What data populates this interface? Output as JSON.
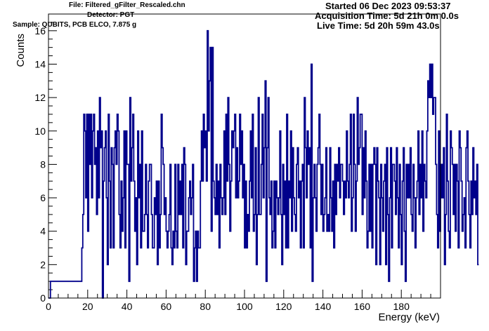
{
  "header": {
    "file": "File: Filtered_gFilter_Rescaled.chn",
    "detector": "Detector: PGT",
    "sample": "Sample: QUBITS, PCB ELCO, 7.875 g",
    "started": "Started 06 Dec 2023 09:53:37",
    "acquisition": "Acquisition Time: 5d 21h 0m 0.0s",
    "live": "Live Time: 5d 20h 59m 43.0s"
  },
  "colors": {
    "line": "#00008b",
    "frame": "#000000",
    "background": "#ffffff"
  },
  "chart_data": {
    "type": "line",
    "style": "histogram-step",
    "xlabel": "Energy (keV)",
    "ylabel": "Counts",
    "xlim": [
      0,
      200
    ],
    "ylim": [
      0,
      17
    ],
    "grid": false,
    "x_ticks": [
      0,
      20,
      40,
      60,
      80,
      100,
      120,
      140,
      160,
      180
    ],
    "x_tick_labels": [
      "0",
      "20",
      "40",
      "60",
      "80",
      "100",
      "120",
      "140",
      "160",
      "180"
    ],
    "y_ticks": [
      0,
      2,
      4,
      6,
      8,
      10,
      12,
      14,
      16
    ],
    "y_tick_labels": [
      "0",
      "2",
      "4",
      "6",
      "8",
      "10",
      "12",
      "14",
      "16"
    ],
    "bin_start": 0,
    "bin_width": 0.5,
    "counts": [
      0,
      0,
      1,
      1,
      1,
      1,
      1,
      1,
      1,
      1,
      1,
      1,
      1,
      1,
      1,
      1,
      1,
      1,
      1,
      1,
      1,
      1,
      1,
      1,
      1,
      1,
      1,
      1,
      1,
      1,
      1,
      1,
      1,
      1,
      3,
      5,
      11,
      10,
      6,
      11,
      4,
      11,
      8,
      11,
      6,
      10,
      11,
      8,
      9,
      5,
      10,
      6,
      12,
      9,
      10,
      0,
      7,
      9,
      10,
      6,
      2,
      11,
      7,
      3,
      9,
      8,
      3,
      9,
      10,
      8,
      11,
      10,
      5,
      3,
      7,
      4,
      6,
      10,
      3,
      10,
      8,
      8,
      1,
      12,
      7,
      9,
      11,
      7,
      4,
      6,
      2,
      10,
      6,
      8,
      3,
      10,
      4,
      4,
      5,
      8,
      5,
      3,
      7,
      8,
      8,
      5,
      3,
      3,
      6,
      5,
      7,
      2,
      7,
      3,
      5,
      11,
      9,
      8,
      5,
      6,
      4,
      3,
      4,
      5,
      8,
      3,
      2,
      4,
      3,
      8,
      4,
      3,
      8,
      5,
      7,
      5,
      8,
      3,
      9,
      8,
      2,
      4,
      4,
      6,
      7,
      5,
      6,
      8,
      1,
      3,
      4,
      1,
      4,
      3,
      3,
      7,
      10,
      7,
      11,
      9,
      10,
      7,
      16,
      10,
      13,
      15,
      4,
      15,
      7,
      6,
      5,
      8,
      5,
      7,
      3,
      8,
      6,
      5,
      6,
      10,
      5,
      11,
      7,
      12,
      8,
      4,
      7,
      10,
      9,
      10,
      11,
      6,
      9,
      6,
      7,
      11,
      8,
      10,
      6,
      8,
      3,
      7,
      3,
      5,
      4,
      7,
      10,
      6,
      11,
      4,
      5,
      9,
      2,
      5,
      12,
      5,
      5,
      8,
      11,
      6,
      9,
      13,
      1,
      9,
      12,
      6,
      5,
      7,
      3,
      4,
      7,
      3,
      7,
      6,
      5,
      6,
      10,
      5,
      2,
      8,
      5,
      7,
      3,
      11,
      3,
      7,
      6,
      10,
      4,
      9,
      6,
      5,
      4,
      8,
      9,
      6,
      7,
      3,
      7,
      8,
      3,
      12,
      9,
      6,
      10,
      8,
      9,
      3,
      14,
      1,
      6,
      8,
      6,
      4,
      8,
      9,
      11,
      8,
      5,
      8,
      4,
      5,
      6,
      9,
      4,
      5,
      4,
      9,
      6,
      4,
      7,
      3,
      8,
      5,
      8,
      7,
      9,
      6,
      8,
      8,
      7,
      5,
      7,
      6,
      10,
      7,
      6,
      8,
      11,
      4,
      6,
      11,
      8,
      4,
      7,
      12,
      8,
      9,
      11,
      11,
      5,
      9,
      6,
      10,
      7,
      3,
      4,
      8,
      4,
      8,
      3,
      8,
      9,
      8,
      2,
      9,
      7,
      6,
      2,
      8,
      6,
      4,
      7,
      8,
      2,
      9,
      5,
      1,
      6,
      9,
      3,
      8,
      8,
      7,
      5,
      9,
      6,
      3,
      8,
      5,
      2,
      7,
      9,
      4,
      1,
      8,
      6,
      8,
      6,
      9,
      5,
      4,
      8,
      6,
      3,
      6,
      7,
      10,
      5,
      8,
      6,
      10,
      4,
      8,
      7,
      6,
      10,
      13,
      12,
      14,
      12,
      14,
      11,
      12,
      12,
      8,
      5,
      3,
      10,
      4,
      6,
      8,
      6,
      9,
      2,
      5,
      11,
      7,
      4,
      3,
      10,
      9,
      8,
      5,
      8,
      4,
      8,
      7,
      3,
      10,
      9,
      7,
      4,
      5,
      6,
      3,
      9,
      10,
      7,
      5,
      3,
      7,
      5,
      9,
      6,
      7,
      5,
      8,
      2
    ]
  }
}
